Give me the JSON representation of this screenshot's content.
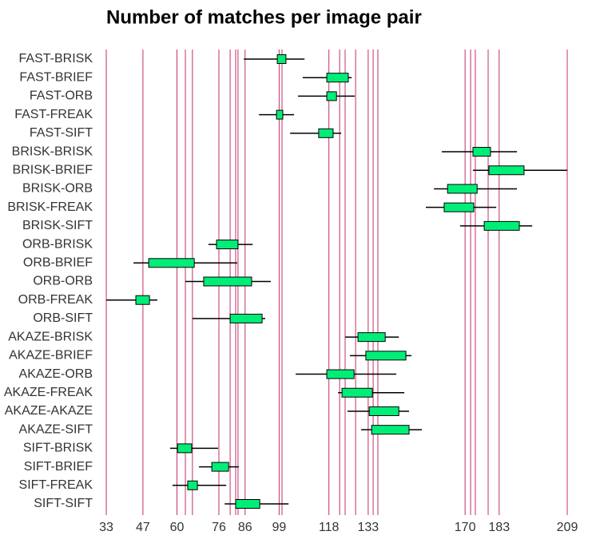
{
  "chart_data": {
    "type": "boxplot",
    "title": "Number of matches per image pair",
    "categories": [
      "FAST-BRISK",
      "FAST-BRIEF",
      "FAST-ORB",
      "FAST-FREAK",
      "FAST-SIFT",
      "BRISK-BRISK",
      "BRISK-BRIEF",
      "BRISK-ORB",
      "BRISK-FREAK",
      "BRISK-SIFT",
      "ORB-BRISK",
      "ORB-BRIEF",
      "ORB-ORB",
      "ORB-FREAK",
      "ORB-SIFT",
      "AKAZE-BRISK",
      "AKAZE-BRIEF",
      "AKAZE-ORB",
      "AKAZE-FREAK",
      "AKAZE-AKAZE",
      "AKAZE-SIFT",
      "SIFT-BRISK",
      "SIFT-BRIEF",
      "SIFT-FREAK",
      "SIFT-SIFT"
    ],
    "low": [
      85.5,
      108.0,
      106.2,
      91.3,
      103.2,
      161.1,
      173.0,
      158.1,
      155.0,
      168.1,
      72.0,
      43.4,
      63.2,
      33,
      65.9,
      124.2,
      126.0,
      105.3,
      121.5,
      125.1,
      130.3,
      57.4,
      68.4,
      58.3,
      78.2
    ],
    "q1": [
      98.3,
      117.2,
      117.2,
      98.0,
      114.1,
      173.0,
      179.1,
      163.3,
      162.0,
      177.3,
      75.1,
      49.2,
      70.2,
      44.3,
      80.3,
      129.1,
      132.1,
      117.2,
      123.0,
      133.4,
      134.3,
      60.2,
      73.3,
      64.1,
      82.4
    ],
    "q3": [
      101.6,
      125.4,
      120.9,
      100.4,
      119.6,
      179.7,
      192.5,
      174.6,
      173.3,
      190.7,
      83.3,
      66.6,
      88.5,
      49.5,
      92.5,
      139.5,
      147.4,
      127.6,
      134.6,
      144.7,
      148.6,
      65.6,
      79.7,
      67.8,
      91.6
    ],
    "high": [
      108.7,
      126.7,
      127.9,
      104.7,
      122.7,
      189.8,
      209,
      189.8,
      181.9,
      195.6,
      88.9,
      83.0,
      95.8,
      52.5,
      93.7,
      144.7,
      149.5,
      143.7,
      146.8,
      148.6,
      153.5,
      75.7,
      83.6,
      78.8,
      102.6
    ],
    "color": "#00ee77",
    "grid_color": "#c0306a",
    "xlim": [
      33,
      209
    ],
    "xticks": [
      33,
      47,
      60,
      76,
      86,
      99,
      118,
      133,
      170,
      183,
      209
    ],
    "xgrid": [
      63.2,
      65.9,
      80.3,
      82.4,
      83.3,
      100.1,
      122.1,
      124.2,
      128.2,
      134.9,
      136.7,
      172.1,
      173.9,
      178.8
    ]
  }
}
